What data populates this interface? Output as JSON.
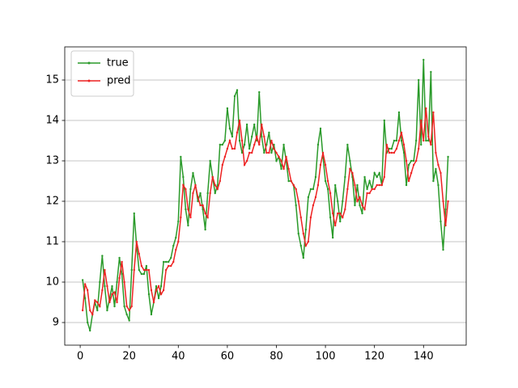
{
  "chart_data": {
    "type": "line",
    "x": [
      1,
      2,
      3,
      4,
      5,
      6,
      7,
      8,
      9,
      10,
      11,
      12,
      13,
      14,
      15,
      16,
      17,
      18,
      19,
      20,
      21,
      22,
      23,
      24,
      25,
      26,
      27,
      28,
      29,
      30,
      31,
      32,
      33,
      34,
      35,
      36,
      37,
      38,
      39,
      40,
      41,
      42,
      43,
      44,
      45,
      46,
      47,
      48,
      49,
      50,
      51,
      52,
      53,
      54,
      55,
      56,
      57,
      58,
      59,
      60,
      61,
      62,
      63,
      64,
      65,
      66,
      67,
      68,
      69,
      70,
      71,
      72,
      73,
      74,
      75,
      76,
      77,
      78,
      79,
      80,
      81,
      82,
      83,
      84,
      85,
      86,
      87,
      88,
      89,
      90,
      91,
      92,
      93,
      94,
      95,
      96,
      97,
      98,
      99,
      100,
      101,
      102,
      103,
      104,
      105,
      106,
      107,
      108,
      109,
      110,
      111,
      112,
      113,
      114,
      115,
      116,
      117,
      118,
      119,
      120,
      121,
      122,
      123,
      124,
      125,
      126,
      127,
      128,
      129,
      130,
      131,
      132,
      133,
      134,
      135,
      136,
      137,
      138,
      139,
      140,
      141,
      142,
      143,
      144,
      145,
      146,
      147,
      148,
      149,
      150
    ],
    "series": [
      {
        "name": "true",
        "color": "#2a9a2a",
        "values": [
          10.05,
          9.6,
          9.0,
          8.8,
          9.2,
          9.5,
          9.3,
          10.0,
          10.65,
          9.9,
          9.3,
          9.6,
          9.9,
          9.4,
          10.0,
          10.6,
          10.2,
          9.4,
          9.2,
          9.05,
          10.3,
          11.7,
          10.9,
          10.3,
          10.2,
          10.2,
          10.4,
          9.7,
          9.2,
          9.5,
          9.9,
          9.6,
          9.9,
          10.5,
          10.5,
          10.5,
          10.6,
          10.9,
          11.1,
          11.5,
          13.1,
          12.6,
          11.8,
          11.4,
          12.3,
          12.7,
          12.4,
          12.0,
          12.2,
          11.8,
          11.3,
          12.2,
          13.0,
          12.6,
          12.2,
          12.4,
          13.4,
          13.4,
          13.5,
          14.3,
          13.8,
          13.6,
          14.6,
          14.75,
          13.5,
          13.2,
          13.4,
          13.9,
          13.3,
          13.6,
          13.9,
          13.5,
          14.7,
          13.6,
          13.2,
          13.4,
          13.7,
          13.2,
          13.4,
          13.0,
          13.1,
          12.8,
          13.4,
          13.0,
          12.5,
          12.5,
          12.4,
          11.9,
          11.2,
          10.9,
          10.6,
          11.3,
          12.1,
          12.3,
          12.3,
          12.6,
          13.4,
          13.8,
          13.1,
          12.5,
          12.3,
          11.6,
          11.1,
          12.4,
          12.0,
          11.5,
          12.0,
          12.6,
          13.4,
          13.0,
          12.6,
          11.9,
          12.4,
          11.9,
          11.7,
          12.6,
          12.3,
          12.5,
          12.3,
          12.7,
          12.6,
          12.7,
          12.4,
          14.0,
          13.2,
          13.3,
          13.3,
          13.5,
          13.5,
          14.2,
          13.5,
          13.2,
          12.4,
          12.9,
          13.0,
          13.0,
          13.5,
          15.0,
          13.4,
          15.5,
          13.5,
          13.5,
          15.2,
          12.5,
          12.8,
          12.4,
          11.5,
          10.8,
          11.8,
          13.1
        ]
      },
      {
        "name": "pred",
        "color": "#ee2222",
        "values": [
          9.3,
          9.95,
          9.8,
          9.3,
          9.2,
          9.55,
          9.5,
          9.4,
          9.8,
          10.3,
          9.9,
          9.5,
          9.7,
          9.75,
          9.5,
          10.1,
          10.5,
          10.0,
          9.4,
          9.3,
          9.4,
          10.3,
          11.0,
          10.7,
          10.4,
          10.3,
          10.3,
          10.3,
          9.8,
          9.5,
          9.8,
          9.9,
          9.7,
          9.8,
          10.3,
          10.4,
          10.4,
          10.5,
          10.8,
          11.0,
          11.6,
          12.4,
          12.3,
          11.8,
          11.6,
          12.2,
          12.4,
          12.1,
          11.9,
          11.9,
          11.7,
          11.6,
          12.2,
          12.6,
          12.4,
          12.3,
          12.5,
          12.9,
          13.1,
          13.3,
          13.5,
          13.3,
          13.3,
          13.7,
          14.0,
          13.5,
          12.9,
          13.0,
          13.2,
          13.2,
          13.4,
          13.6,
          13.4,
          13.9,
          13.6,
          13.2,
          13.2,
          13.5,
          13.3,
          13.2,
          13.1,
          13.0,
          12.8,
          13.1,
          12.8,
          12.5,
          12.4,
          12.3,
          12.0,
          11.6,
          11.2,
          10.9,
          11.0,
          11.6,
          11.9,
          12.1,
          12.4,
          12.9,
          13.2,
          12.9,
          12.5,
          12.2,
          11.7,
          11.4,
          11.7,
          11.7,
          11.6,
          11.8,
          12.3,
          12.8,
          12.7,
          12.4,
          12.0,
          12.1,
          11.9,
          11.8,
          12.2,
          12.2,
          12.3,
          12.3,
          12.4,
          12.4,
          12.4,
          12.6,
          13.4,
          13.2,
          13.2,
          13.2,
          13.3,
          13.5,
          13.7,
          13.4,
          13.0,
          12.5,
          12.7,
          12.9,
          13.0,
          13.3,
          14.0,
          13.5,
          14.3,
          13.6,
          13.4,
          14.2,
          13.2,
          12.9,
          12.7,
          12.0,
          11.4,
          12.0
        ]
      }
    ],
    "xlim": [
      -6.3,
      157.4
    ],
    "xticks": [
      0,
      20,
      40,
      60,
      80,
      100,
      120,
      140
    ],
    "ylim": [
      8.44,
      15.82
    ],
    "yticks": [
      9,
      10,
      11,
      12,
      13,
      14,
      15
    ],
    "grid": "y",
    "legend": "upper left"
  }
}
